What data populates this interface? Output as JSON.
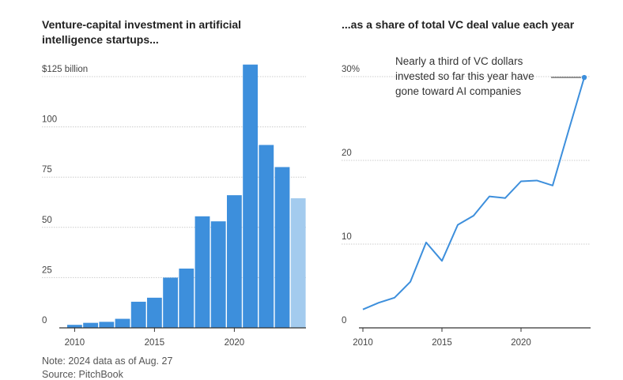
{
  "left_title": "Venture-capital investment in artificial intelligence startups...",
  "right_title": "...as a share of total VC deal value each year",
  "note": "Note: 2024 data as of Aug. 27",
  "source": "Source: PitchBook",
  "colors": {
    "bar": "#3d8fdc",
    "bar_partial": "#a3cbee",
    "line": "#3d8fdc",
    "grid": "#cccccc",
    "axis": "#333333"
  },
  "chart_data": [
    {
      "type": "bar",
      "title": "Venture-capital investment in artificial intelligence startups...",
      "x": [
        2010,
        2011,
        2012,
        2013,
        2014,
        2015,
        2016,
        2017,
        2018,
        2019,
        2020,
        2021,
        2022,
        2023,
        2024
      ],
      "values": [
        1.5,
        2.5,
        3,
        4.5,
        13,
        15,
        25,
        29.5,
        55.5,
        53,
        66,
        131,
        91,
        80,
        64.5
      ],
      "partial_year": 2024,
      "ylim": [
        0,
        130
      ],
      "yticks": [
        0,
        25,
        50,
        75,
        100,
        125
      ],
      "ytick_labels": [
        "0",
        "25",
        "50",
        "75",
        "100",
        "$125 billion"
      ],
      "xticks": [
        2010,
        2015,
        2020
      ],
      "xtick_labels": [
        "2010",
        "2015",
        "2020"
      ],
      "grid": true
    },
    {
      "type": "line",
      "title": "...as a share of total VC deal value each year",
      "x": [
        2010,
        2011,
        2012,
        2013,
        2014,
        2015,
        2016,
        2017,
        2018,
        2019,
        2020,
        2021,
        2022,
        2023,
        2024
      ],
      "values": [
        2.2,
        3.0,
        3.6,
        5.5,
        10.2,
        8.0,
        12.3,
        13.4,
        15.7,
        15.5,
        17.5,
        17.6,
        17.0,
        23.5,
        29.9
      ],
      "ylim": [
        0,
        30
      ],
      "yticks": [
        0,
        10,
        20,
        30
      ],
      "ytick_labels": [
        "0",
        "10",
        "20",
        "30%"
      ],
      "xticks": [
        2010,
        2015,
        2020
      ],
      "xtick_labels": [
        "2010",
        "2015",
        "2020"
      ],
      "grid": true,
      "annotation": {
        "text": "Nearly a third of VC dollars invested so far this year have gone toward AI companies",
        "year": 2024
      }
    }
  ]
}
